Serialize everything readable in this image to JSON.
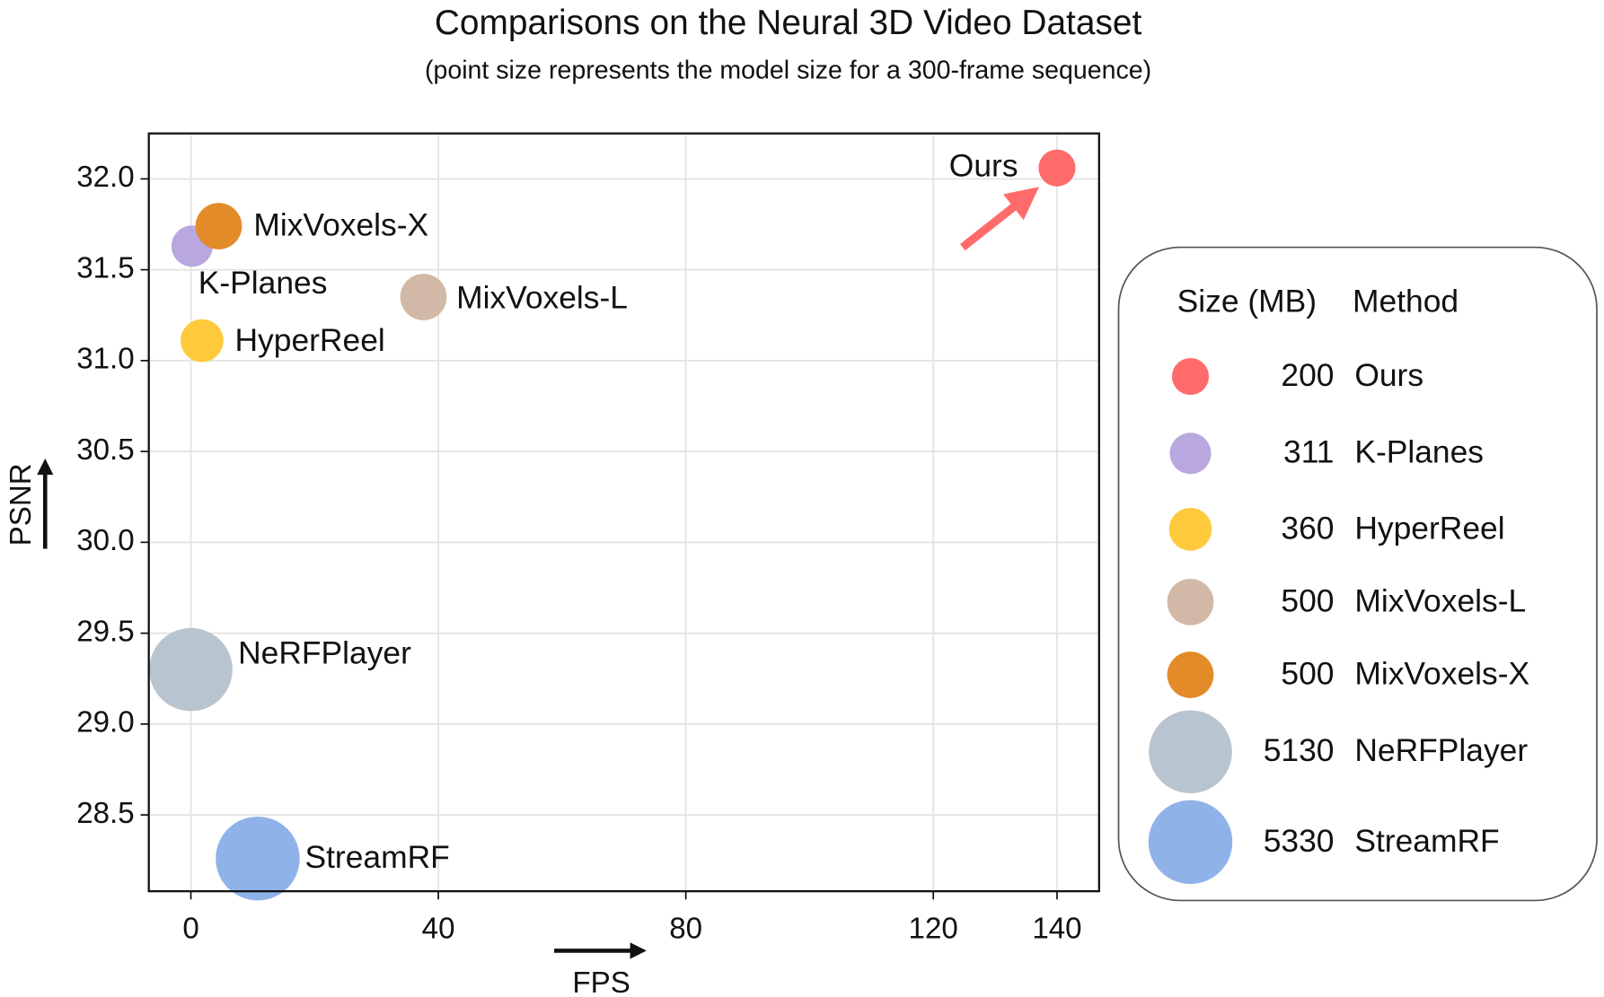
{
  "chart_data": {
    "type": "bubble",
    "title": "Comparisons on the Neural 3D Video Dataset",
    "subtitle": "(point size represents the model size for a 300-frame sequence)",
    "x_label": "FPS",
    "y_label": "PSNR",
    "xlim": [
      -6.8,
      146.8
    ],
    "ylim": [
      28.08,
      32.25
    ],
    "xticks": [
      0,
      40,
      80,
      120,
      140
    ],
    "yticks": [
      {
        "value": 28.5,
        "label": "28.5"
      },
      {
        "value": 29,
        "label": "29.0"
      },
      {
        "value": 29.5,
        "label": "29.5"
      },
      {
        "value": 30,
        "label": "30.0"
      },
      {
        "value": 30.5,
        "label": "30.5"
      },
      {
        "value": 31,
        "label": "31.0"
      },
      {
        "value": 31.5,
        "label": "31.5"
      },
      {
        "value": 32,
        "label": "32.0"
      }
    ],
    "grid": true,
    "legend_position": "right",
    "legend_headers": [
      "Size (MB)",
      "Method"
    ],
    "series": [
      {
        "name": "Ours",
        "color": "#ff6b6b",
        "x": 140,
        "y": 32.06,
        "size": 200
      },
      {
        "name": "K-Planes",
        "color": "#b9a7e0",
        "x": 0.2,
        "y": 31.63,
        "size": 311
      },
      {
        "name": "HyperReel",
        "color": "#ffc93c",
        "x": 1.8,
        "y": 31.11,
        "size": 360
      },
      {
        "name": "MixVoxels-L",
        "color": "#d2b8a6",
        "x": 37.6,
        "y": 31.35,
        "size": 500
      },
      {
        "name": "MixVoxels-X",
        "color": "#e38b29",
        "x": 4.5,
        "y": 31.74,
        "size": 500
      },
      {
        "name": "NeRFPlayer",
        "color": "#b8c4cf",
        "x": 0,
        "y": 29.3,
        "size": 5130
      },
      {
        "name": "StreamRF",
        "color": "#8fb2e8",
        "x": 10.8,
        "y": 28.26,
        "size": 5330
      }
    ]
  }
}
